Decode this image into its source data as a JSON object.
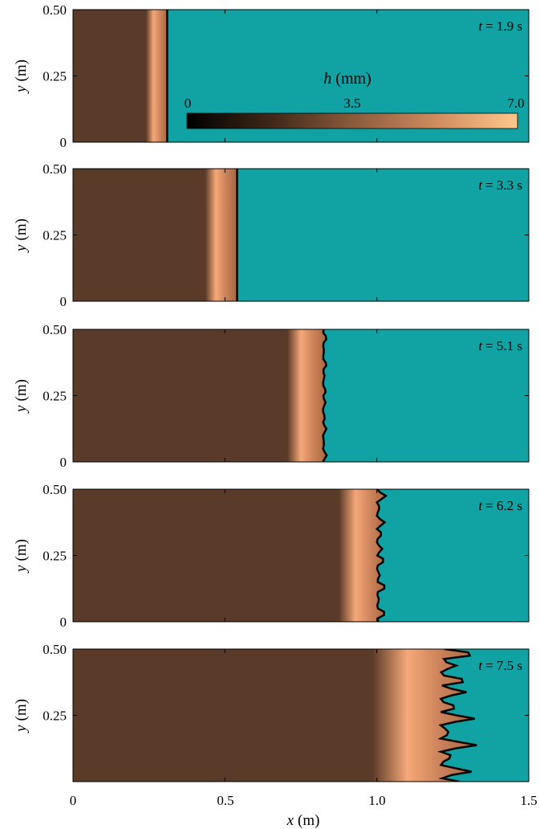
{
  "chart_data": {
    "type": "heatmap",
    "xlabel_var": "x",
    "xlabel_unit": "(m)",
    "ylabel_var": "y",
    "ylabel_unit": "(m)",
    "xlim": [
      0,
      1.5
    ],
    "ylim": [
      0,
      0.5
    ],
    "x_ticks": [
      {
        "value": 0,
        "label": "0"
      },
      {
        "value": 0.5,
        "label": "0.5"
      },
      {
        "value": 1.0,
        "label": "1.0"
      },
      {
        "value": 1.5,
        "label": "1.5"
      }
    ],
    "y_ticks_full": [
      {
        "value": 0,
        "label": "0"
      },
      {
        "value": 0.25,
        "label": "0.25"
      },
      {
        "value": 0.5,
        "label": "0.50"
      }
    ],
    "y_ticks_last": [
      {
        "value": 0.25,
        "label": "0.25"
      },
      {
        "value": 0.5,
        "label": "0.50"
      }
    ],
    "colorbar": {
      "var": "h",
      "unit": "(mm)",
      "min": 0,
      "max": 7.0,
      "ticks": [
        {
          "value": 0,
          "label": "0"
        },
        {
          "value": 3.5,
          "label": "3.5"
        },
        {
          "value": 7.0,
          "label": "7.0"
        }
      ]
    },
    "colors": {
      "dry_region": "#11a3a3",
      "film": "#5a3a28",
      "peak": "#f5a878",
      "front_edge": "#0a0604"
    },
    "panels": [
      {
        "t_var": "t",
        "t_eq": "= 1.9 s",
        "front_x": 0.31,
        "crest_x": 0.265,
        "crest_width": 0.05,
        "fingering": 0
      },
      {
        "t_var": "t",
        "t_eq": "= 3.3 s",
        "front_x": 0.54,
        "crest_x": 0.47,
        "crest_width": 0.07,
        "fingering": 0
      },
      {
        "t_var": "t",
        "t_eq": "= 5.1 s",
        "front_x": 0.835,
        "crest_x": 0.75,
        "crest_width": 0.09,
        "fingering": 0.012
      },
      {
        "t_var": "t",
        "t_eq": "= 6.2 s",
        "front_x": 1.03,
        "crest_x": 0.93,
        "crest_width": 0.11,
        "fingering": 0.03
      },
      {
        "t_var": "t",
        "t_eq": "= 7.5 s",
        "front_x": 1.33,
        "crest_x": 1.1,
        "crest_width": 0.23,
        "fingering": 0.12
      }
    ]
  }
}
